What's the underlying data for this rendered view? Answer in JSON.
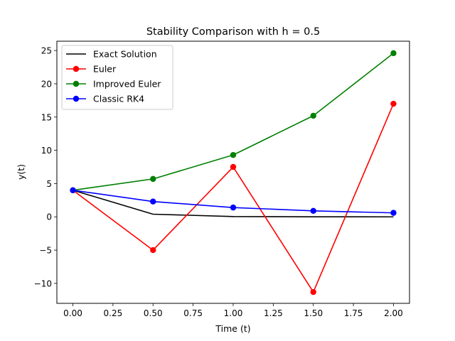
{
  "chart_data": {
    "type": "line",
    "title": "Stability Comparison with h = 0.5",
    "xlabel": "Time (t)",
    "ylabel": "y(t)",
    "x": [
      0.0,
      0.5,
      1.0,
      1.5,
      2.0
    ],
    "xlim": [
      -0.1,
      2.1
    ],
    "ylim": [
      -13.0,
      26.4
    ],
    "xticks": [
      0.0,
      0.25,
      0.5,
      0.75,
      1.0,
      1.25,
      1.5,
      1.75,
      2.0
    ],
    "xtick_labels": [
      "0.00",
      "0.25",
      "0.50",
      "0.75",
      "1.00",
      "1.25",
      "1.50",
      "1.75",
      "2.00"
    ],
    "yticks": [
      -10,
      -5,
      0,
      5,
      10,
      15,
      20,
      25
    ],
    "ytick_labels": [
      "−10",
      "−5",
      "0",
      "5",
      "10",
      "15",
      "20",
      "25"
    ],
    "grid": false,
    "legend_position": "top-left",
    "series": [
      {
        "name": "Exact Solution",
        "color": "#000000",
        "marker": "none",
        "values": [
          4.0,
          0.4,
          0.05,
          0.01,
          0.0
        ]
      },
      {
        "name": "Euler",
        "color": "#ff0000",
        "marker": "circle",
        "values": [
          4.0,
          -5.0,
          7.5,
          -11.3,
          17.0
        ]
      },
      {
        "name": "Improved Euler",
        "color": "#008000",
        "marker": "circle",
        "values": [
          4.0,
          5.7,
          9.3,
          15.2,
          24.6
        ]
      },
      {
        "name": "Classic RK4",
        "color": "#0000ff",
        "marker": "circle",
        "values": [
          4.0,
          2.3,
          1.4,
          0.9,
          0.6
        ]
      }
    ]
  }
}
